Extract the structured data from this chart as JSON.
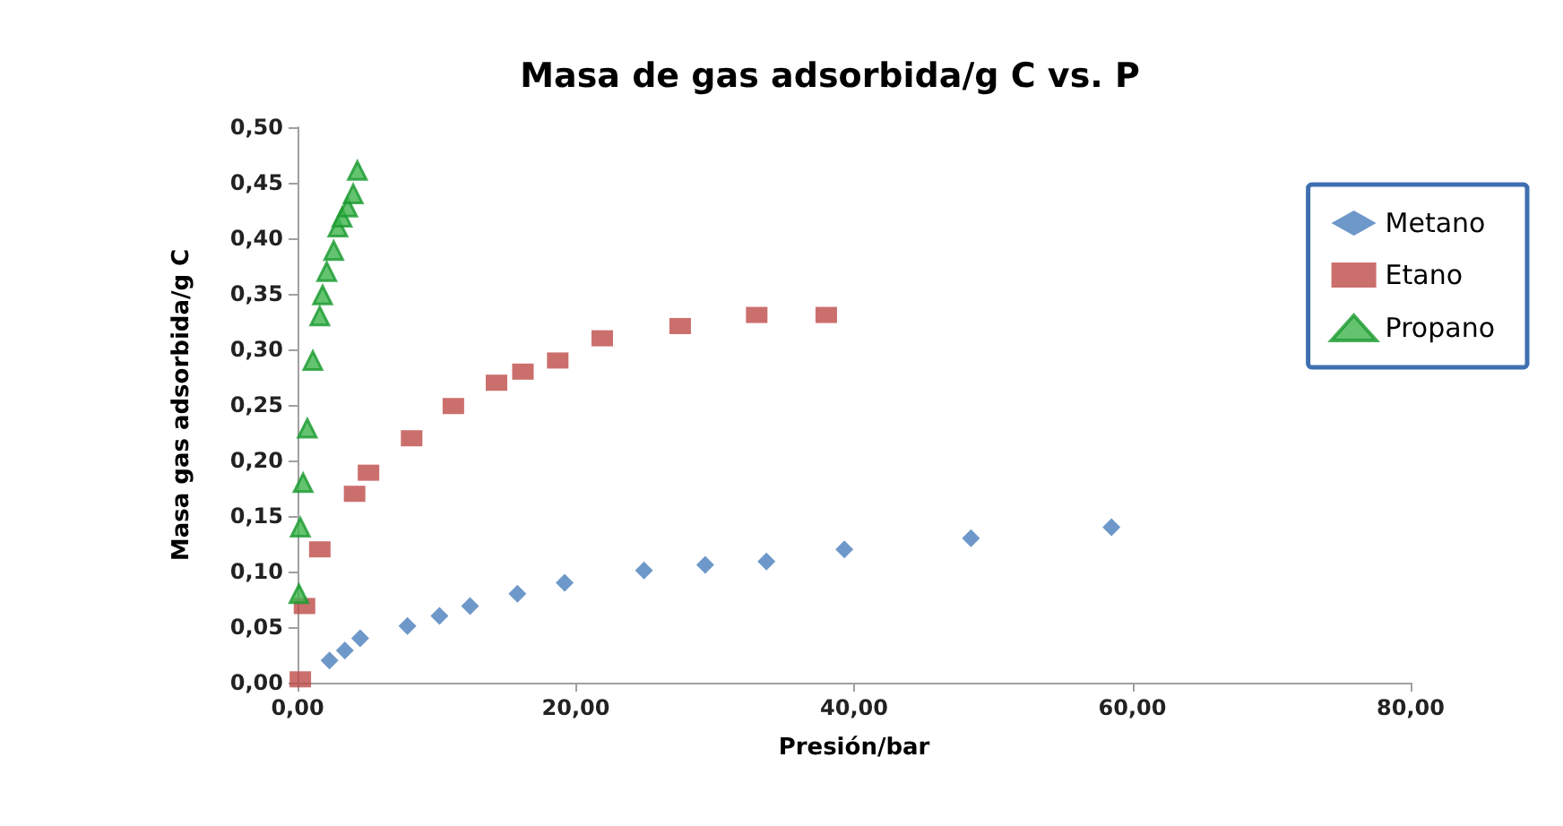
{
  "chart_data": {
    "type": "scatter",
    "title": "Masa de gas adsorbida/g C vs. P",
    "xlabel": "Presión/bar",
    "ylabel": "Masa gas adsorbida/g C",
    "xlim": [
      0,
      80
    ],
    "xticks": [
      {
        "value": 0,
        "label": "0,00"
      },
      {
        "value": 20,
        "label": "20,00"
      },
      {
        "value": 40,
        "label": "40,00"
      },
      {
        "value": 60,
        "label": "60,00"
      },
      {
        "value": 80,
        "label": "80,00"
      }
    ],
    "ylim": [
      0,
      0.5
    ],
    "yticks": [
      {
        "value": 0,
        "label": "0,00"
      },
      {
        "value": 0.05,
        "label": "0,05"
      },
      {
        "value": 0.1,
        "label": "0,10"
      },
      {
        "value": 0.15,
        "label": "0,15"
      },
      {
        "value": 0.2,
        "label": "0,20"
      },
      {
        "value": 0.25,
        "label": "0,25"
      },
      {
        "value": 0.3,
        "label": "0,30"
      },
      {
        "value": 0.35,
        "label": "0,35"
      },
      {
        "value": 0.4,
        "label": "0,40"
      },
      {
        "value": 0.45,
        "label": "0,45"
      },
      {
        "value": 0.5,
        "label": "0,50"
      }
    ],
    "grid": false,
    "legend": "right",
    "series": [
      {
        "name": "Metano",
        "color": "#4a7ebb",
        "marker": "diamond",
        "x": [
          2.3,
          3.4,
          4.5,
          7.9,
          10.2,
          12.4,
          15.8,
          19.2,
          24.9,
          29.3,
          33.7,
          39.3,
          48.4,
          58.5
        ],
        "values": [
          0.02,
          0.029,
          0.04,
          0.051,
          0.06,
          0.069,
          0.08,
          0.09,
          0.101,
          0.106,
          0.109,
          0.12,
          0.13,
          0.14
        ]
      },
      {
        "name": "Etano",
        "color": "#be4b48",
        "marker": "square",
        "x": [
          0.2,
          0.5,
          1.6,
          4.1,
          5.1,
          8.2,
          11.2,
          14.3,
          16.2,
          18.7,
          21.9,
          27.5,
          33.0,
          38.0
        ],
        "values": [
          0.003,
          0.069,
          0.12,
          0.17,
          0.189,
          0.22,
          0.249,
          0.27,
          0.28,
          0.29,
          0.31,
          0.321,
          0.331,
          0.331
        ]
      },
      {
        "name": "Propano",
        "color": "#3cb44b",
        "marker": "triangle",
        "x": [
          0.1,
          0.2,
          0.4,
          0.7,
          1.1,
          1.6,
          1.8,
          2.1,
          2.6,
          2.9,
          3.2,
          3.6,
          4.0,
          4.3
        ],
        "values": [
          0.08,
          0.14,
          0.18,
          0.229,
          0.29,
          0.33,
          0.349,
          0.37,
          0.389,
          0.41,
          0.419,
          0.428,
          0.44,
          0.461
        ]
      }
    ]
  }
}
